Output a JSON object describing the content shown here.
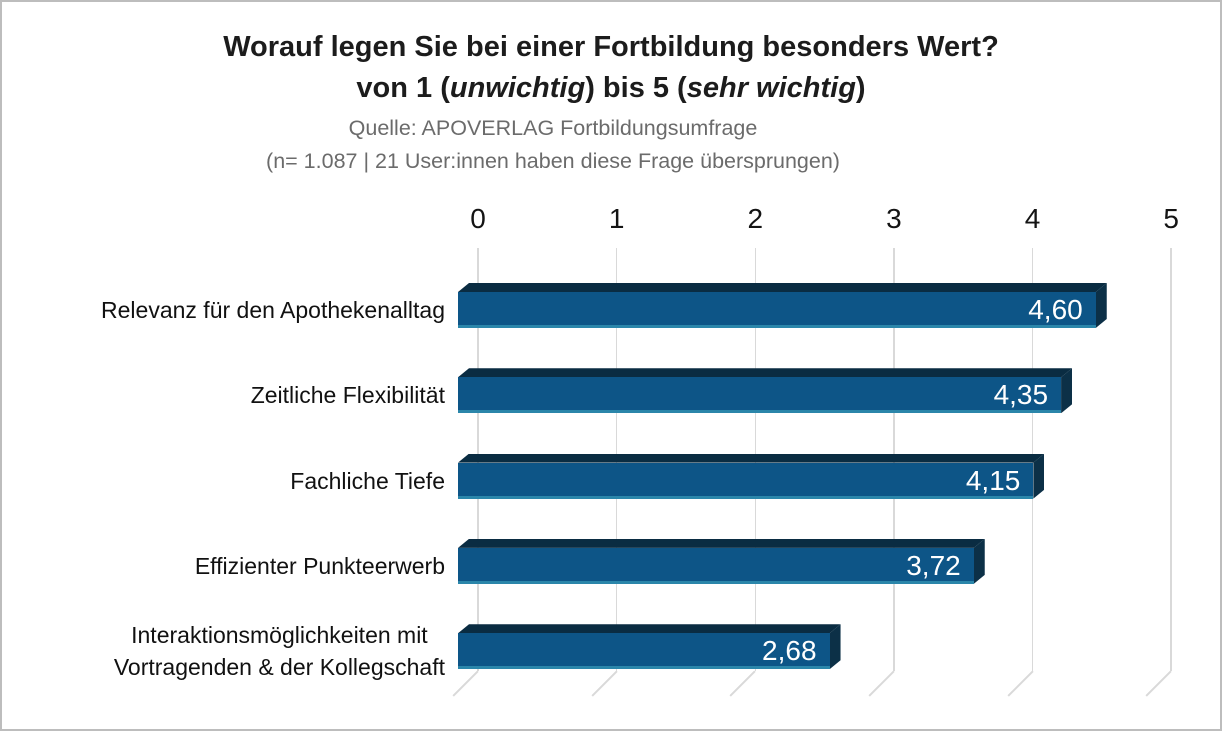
{
  "header": {
    "title_line1": "Worauf legen Sie bei einer Fortbildung besonders Wert?",
    "title_line2": {
      "pre": "von 1 (",
      "italic1": "unwichtig",
      "mid": ") bis 5 (",
      "italic2": "sehr wichtig",
      "post": ")"
    },
    "source_line": "Quelle: APOVERLAG Fortbildungsumfrage",
    "sample_line": "(n= 1.087 | 21 User:innen haben diese Frage übersprungen)"
  },
  "chart_data": {
    "type": "bar",
    "orientation": "horizontal",
    "style": "3d",
    "title": "Worauf legen Sie bei einer Fortbildung besonders Wert? von 1 (unwichtig) bis 5 (sehr wichtig)",
    "subtitle": "Quelle: APOVERLAG Fortbildungsumfrage (n= 1.087 | 21 User:innen haben diese Frage übersprungen)",
    "categories": [
      [
        "Relevanz für den Apothekenalltag"
      ],
      [
        "Zeitliche Flexibilität"
      ],
      [
        "Fachliche Tiefe"
      ],
      [
        "Effizienter Punkteerwerb"
      ],
      [
        "Interaktionsmöglichkeiten mit",
        "Vortragenden & der Kollegschaft"
      ]
    ],
    "values": [
      4.6,
      4.35,
      4.15,
      3.72,
      2.68
    ],
    "value_labels": [
      "4,60",
      "4,35",
      "4,15",
      "3,72",
      "2,68"
    ],
    "x_ticks": [
      "0",
      "1",
      "2",
      "3",
      "4",
      "5"
    ],
    "xlim": [
      0,
      5
    ],
    "xlabel": "",
    "ylabel": "",
    "grid": true,
    "axis_position": "top",
    "legend": "none",
    "colors": {
      "bar_front": "#0d5587",
      "bar_top_face": "#0a2c42",
      "bar_end_face": "#0c3047",
      "bar_bottom_edge": "#2b86aa",
      "gridline": "#d9d9d9",
      "value_text": "#ffffff",
      "title_text": "#1c1c1c",
      "subtitle_text": "#6b6b6b"
    }
  }
}
